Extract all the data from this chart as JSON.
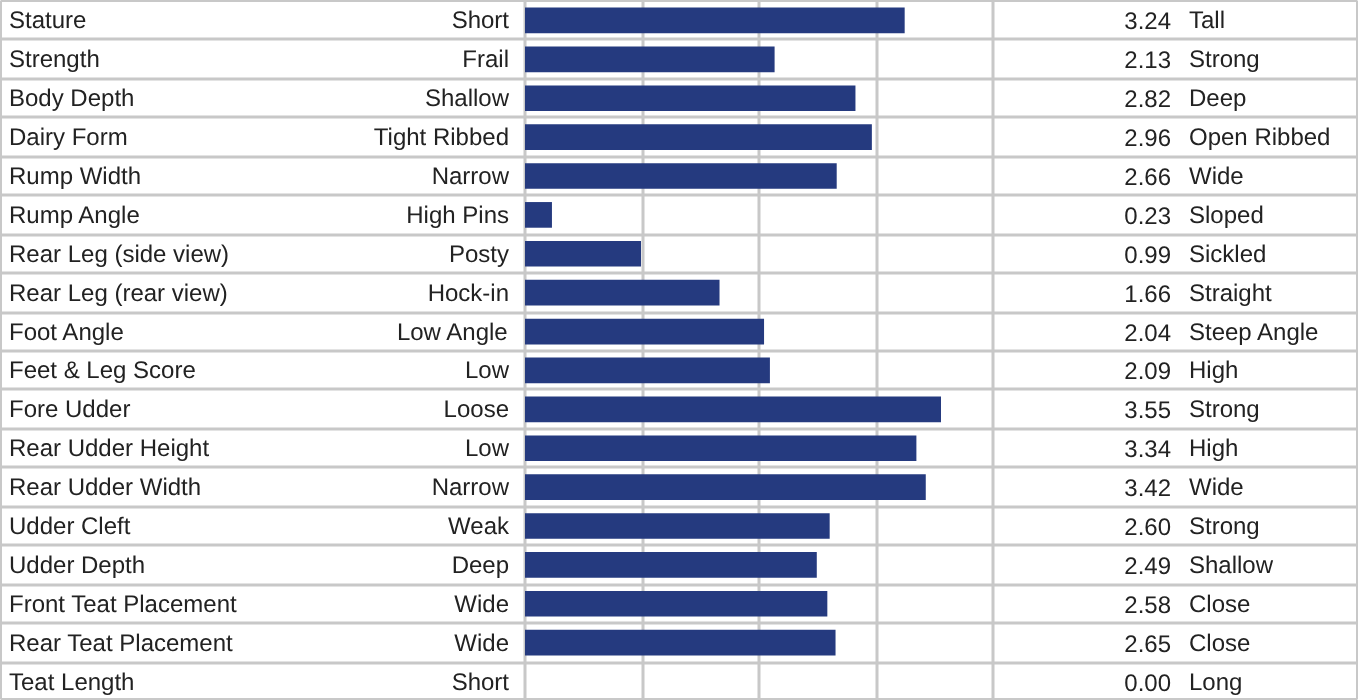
{
  "chart_data": {
    "type": "bar",
    "orientation": "horizontal",
    "categories": [
      "Stature",
      "Strength",
      "Body Depth",
      "Dairy Form",
      "Rump Width",
      "Rump Angle",
      "Rear Leg (side view)",
      "Rear Leg (rear view)",
      "Foot Angle",
      "Feet & Leg Score",
      "Fore Udder",
      "Rear Udder Height",
      "Rear Udder Width",
      "Udder Cleft",
      "Udder Depth",
      "Front Teat Placement",
      "Rear Teat Placement",
      "Teat Length"
    ],
    "values": [
      3.24,
      2.13,
      2.82,
      2.96,
      2.66,
      0.23,
      0.99,
      1.66,
      2.04,
      2.09,
      3.55,
      3.34,
      3.42,
      2.6,
      2.49,
      2.58,
      2.65,
      0.0
    ],
    "value_labels": [
      "3.24",
      "2.13",
      "2.82",
      "2.96",
      "2.66",
      "0.23",
      "0.99",
      "1.66",
      "2.04",
      "2.09",
      "3.55",
      "3.34",
      "3.42",
      "2.60",
      "2.49",
      "2.58",
      "2.65",
      "0.00"
    ],
    "color": "#253a7f",
    "grid": true,
    "tick_labels": false,
    "annotations": [
      "Short",
      "Frail",
      "Shallow",
      "Tight Ribbed",
      "Narrow",
      "High Pins",
      "Posty",
      "Hock-in",
      "Low Angle",
      "Low",
      "Loose",
      "Low",
      "Narrow",
      "Weak",
      "Deep",
      "Wide",
      "Wide",
      "Short",
      "Tall",
      "Strong",
      "Deep",
      "Open Ribbed",
      "Wide",
      "Sloped",
      "Sickled",
      "Straight",
      "Steep Angle",
      "High",
      "Strong",
      "High",
      "Wide",
      "Strong",
      "Shallow",
      "Close",
      "Close",
      "Long"
    ]
  }
}
